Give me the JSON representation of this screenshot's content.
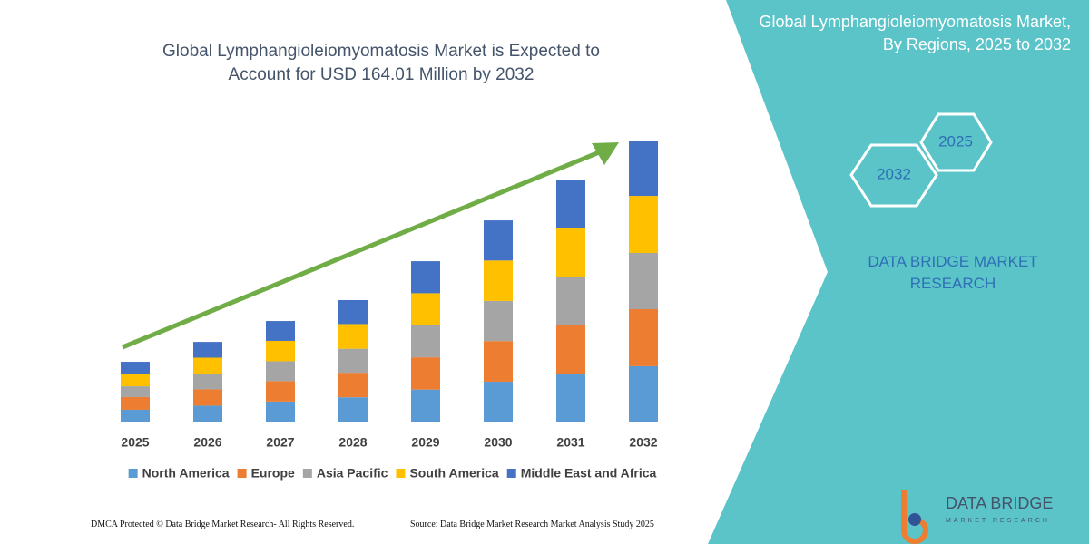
{
  "chart_data": {
    "type": "bar",
    "stacked": true,
    "title": "Global Lymphangioleiomyomatosis Market is Expected to Account for USD 164.01 Million by 2032",
    "categories": [
      "2025",
      "2026",
      "2027",
      "2028",
      "2029",
      "2030",
      "2031",
      "2032"
    ],
    "series": [
      {
        "name": "North America",
        "color": "#5b9bd5",
        "values": [
          6.9,
          9.3,
          11.7,
          14.2,
          18.7,
          23.3,
          28.0,
          32.3
        ]
      },
      {
        "name": "Europe",
        "color": "#ed7d31",
        "values": [
          7.4,
          9.5,
          11.9,
          14.3,
          18.8,
          23.7,
          28.4,
          33.3
        ]
      },
      {
        "name": "Asia Pacific",
        "color": "#a5a5a5",
        "values": [
          6.3,
          9.0,
          11.6,
          14.0,
          18.6,
          23.4,
          28.2,
          32.8
        ]
      },
      {
        "name": "South America",
        "color": "#ffc000",
        "values": [
          7.4,
          9.5,
          11.9,
          14.4,
          18.8,
          23.6,
          28.4,
          33.3
        ]
      },
      {
        "name": "Middle East and Africa",
        "color": "#4472c4",
        "values": [
          6.9,
          9.2,
          11.6,
          14.0,
          18.7,
          23.4,
          28.2,
          32.3
        ]
      }
    ],
    "ylim": [
      0,
      164
    ]
  },
  "panel": {
    "title": "Global Lymphangioleiomyomatosis Market, By Regions, 2025 to 2032",
    "hexagons": [
      "2025",
      "2032"
    ],
    "brand": "DATA BRIDGE MARKET RESEARCH"
  },
  "logo": {
    "name": "DATA BRIDGE",
    "tagline": "MARKET RESEARCH"
  },
  "footer": {
    "left": "DMCA Protected © Data Bridge Market Research- All Rights Reserved.",
    "right": "Source: Data Bridge Market Research Market Analysis Study 2025"
  }
}
